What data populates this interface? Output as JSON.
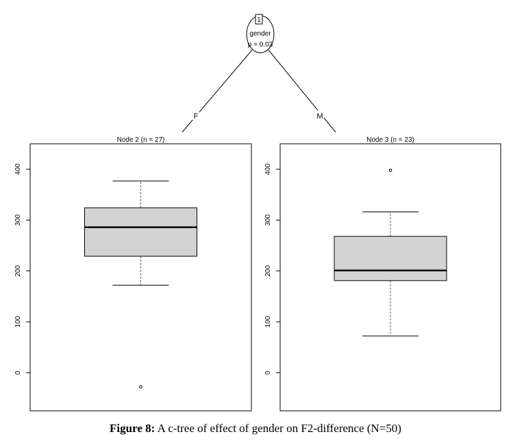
{
  "tree": {
    "root": {
      "id": "1",
      "variable": "gender",
      "p_label": "p = 0.03"
    },
    "branches": [
      {
        "label": "F"
      },
      {
        "label": "M"
      }
    ]
  },
  "chart_data": [
    {
      "type": "boxplot",
      "title": "Node 2 (n = 27)",
      "ylim": [
        -75,
        450
      ],
      "yticks": [
        0,
        100,
        200,
        300,
        400
      ],
      "grid": false,
      "box": {
        "whisker_low": 172,
        "q1": 229,
        "median": 286,
        "q3": 324,
        "whisker_high": 377
      },
      "outliers": [
        -28
      ]
    },
    {
      "type": "boxplot",
      "title": "Node 3 (n = 23)",
      "ylim": [
        -75,
        450
      ],
      "yticks": [
        0,
        100,
        200,
        300,
        400
      ],
      "grid": false,
      "box": {
        "whisker_low": 72,
        "q1": 181,
        "median": 201,
        "q3": 268,
        "whisker_high": 316
      },
      "outliers": [
        398
      ]
    }
  ],
  "caption": {
    "label": "Figure 8:",
    "text": " A c-tree of effect of gender on F2-difference (N=50)"
  }
}
